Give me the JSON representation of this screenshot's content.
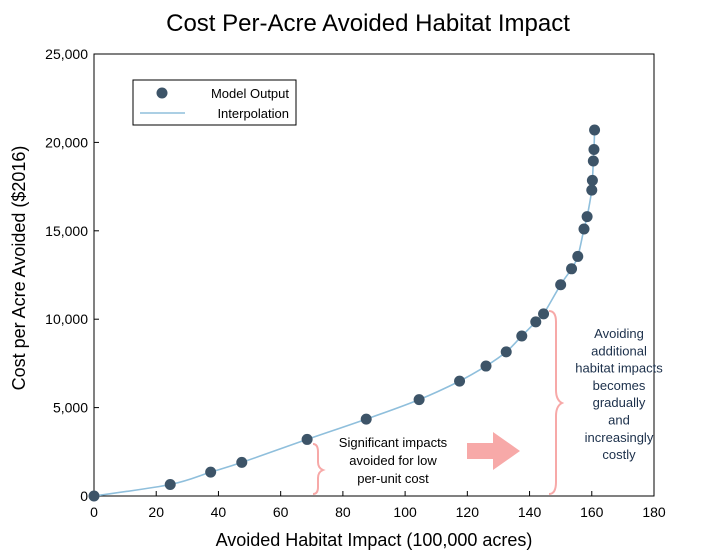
{
  "chart_data": {
    "type": "scatter",
    "title": "Cost Per-Acre Avoided Habitat Impact",
    "xlabel": "Avoided Habitat Impact (100,000 acres)",
    "ylabel": "Cost per Acre Avoided ($2016)",
    "xlim": [
      0,
      180
    ],
    "ylim": [
      0,
      25000
    ],
    "x_ticks": [
      "0",
      "20",
      "40",
      "60",
      "80",
      "100",
      "120",
      "140",
      "160",
      "180"
    ],
    "y_ticks": [
      "0",
      "5,000",
      "10,000",
      "15,000",
      "20,000",
      "25,000"
    ],
    "grid": false,
    "legend_position": "top-left",
    "series": [
      {
        "name": "Model Output",
        "kind": "points",
        "color": "#3d5468",
        "x": [
          0,
          24.5,
          37.5,
          47.5,
          68.5,
          87.5,
          104.5,
          117.5,
          126,
          132.5,
          137.5,
          142,
          144.5,
          150,
          153.5,
          155.5,
          157.5,
          158.5,
          160,
          160.2,
          160.5,
          160.7,
          160.9
        ],
        "y": [
          0,
          650,
          1350,
          1900,
          3200,
          4350,
          5450,
          6500,
          7350,
          8150,
          9050,
          9850,
          10300,
          11950,
          12850,
          13550,
          15100,
          15800,
          17300,
          17850,
          18950,
          19600,
          20700
        ]
      },
      {
        "name": "Interpolation",
        "kind": "line",
        "color": "#8fbfdc"
      }
    ],
    "annotations": [
      {
        "lines": [
          "Significant impacts",
          "avoided for low",
          "per-unit cost"
        ],
        "color": "#000000"
      },
      {
        "lines": [
          "Avoiding",
          "additional",
          "habitat impacts",
          "becomes",
          "gradually",
          "and",
          "increasingly",
          "costly"
        ],
        "color": "#1b2f4a"
      }
    ],
    "annotation_accent_color": "#f7a9a8"
  }
}
